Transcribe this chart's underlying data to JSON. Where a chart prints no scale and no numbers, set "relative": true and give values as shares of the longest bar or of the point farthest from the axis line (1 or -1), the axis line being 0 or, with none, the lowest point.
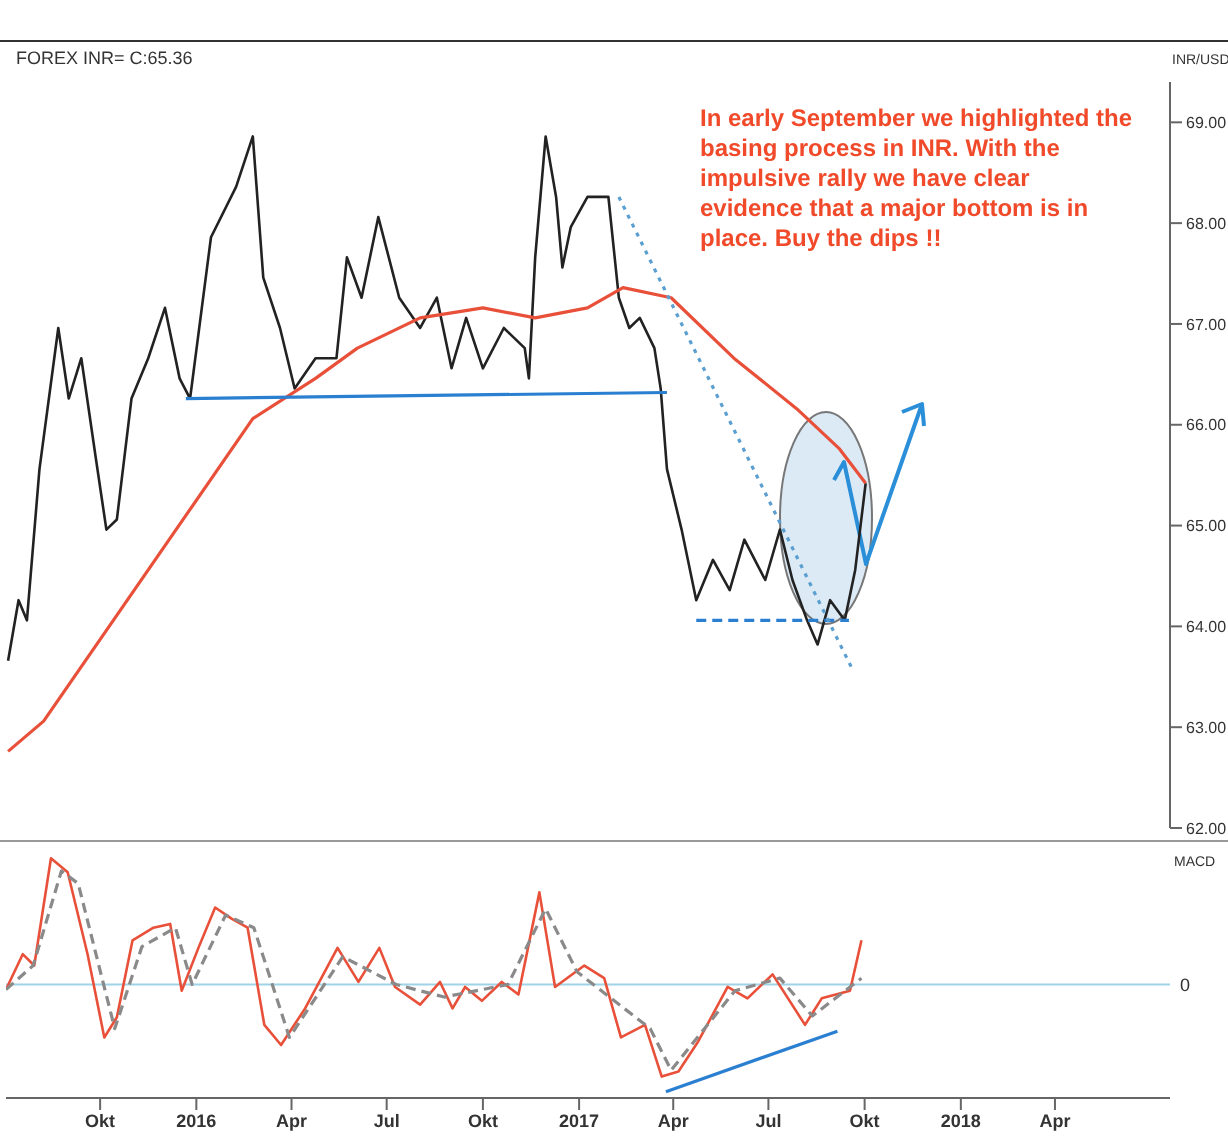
{
  "chart_data": [
    {
      "type": "line",
      "subtitle": "FOREX INR= C:65.36",
      "ylabel": "INR/USD",
      "annotations": [
        "In early September we highlighted the basing process in INR. With the impulsive rally we have clear evidence that a major bottom is in place. Buy the dips !!"
      ],
      "xlim": [
        "2015-07-03",
        "2018-07-20"
      ],
      "ylim": [
        62,
        69.4
      ],
      "yticks": [
        {
          "value": 62,
          "label": "62.00"
        },
        {
          "value": 63,
          "label": "63.00"
        },
        {
          "value": 64,
          "label": "64.00"
        },
        {
          "value": 65,
          "label": "65.00"
        },
        {
          "value": 66,
          "label": "66.00"
        },
        {
          "value": 67,
          "label": "67.00"
        },
        {
          "value": 68,
          "label": "68.00"
        },
        {
          "value": 69,
          "label": "69.00"
        }
      ],
      "tick_labels": "y",
      "series": [
        {
          "color": "#222222",
          "x": [
            "2015-07-05",
            "2015-07-15",
            "2015-07-23",
            "2015-08-04",
            "2015-08-22",
            "2015-09-01",
            "2015-09-13",
            "2015-09-27",
            "2015-10-07",
            "2015-10-17",
            "2015-10-31",
            "2015-11-16",
            "2015-12-02",
            "2015-12-16",
            "2015-12-26",
            "2016-01-15",
            "2016-02-08",
            "2016-02-24",
            "2016-03-05",
            "2016-03-21",
            "2016-04-04",
            "2016-04-24",
            "2016-05-14",
            "2016-05-24",
            "2016-06-07",
            "2016-06-23",
            "2016-07-03",
            "2016-07-13",
            "2016-08-02",
            "2016-08-18",
            "2016-09-01",
            "2016-09-15",
            "2016-10-01",
            "2016-10-21",
            "2016-11-10",
            "2016-11-14",
            "2016-11-20",
            "2016-11-30",
            "2016-12-10",
            "2016-12-16",
            "2016-12-24",
            "2017-01-09",
            "2017-01-29",
            "2017-02-08",
            "2017-02-18",
            "2017-02-28",
            "2017-03-14",
            "2017-03-20",
            "2017-03-26",
            "2017-04-09",
            "2017-04-23",
            "2017-05-09",
            "2017-05-25",
            "2017-06-08",
            "2017-06-28",
            "2017-07-12",
            "2017-07-24",
            "2017-08-07",
            "2017-08-17",
            "2017-08-29",
            "2017-09-12",
            "2017-09-22",
            "2017-10-02"
          ],
          "values": [
            63.66,
            64.26,
            64.06,
            65.56,
            66.96,
            66.26,
            66.66,
            65.66,
            64.96,
            65.06,
            66.26,
            66.66,
            67.16,
            66.46,
            66.26,
            67.86,
            68.36,
            68.86,
            67.46,
            66.96,
            66.36,
            66.66,
            66.66,
            67.66,
            67.26,
            68.06,
            67.66,
            67.26,
            66.96,
            67.26,
            66.56,
            67.06,
            66.56,
            66.96,
            66.76,
            66.46,
            67.66,
            68.86,
            68.26,
            67.56,
            67.96,
            68.26,
            68.26,
            67.26,
            66.96,
            67.06,
            66.76,
            66.36,
            65.56,
            64.96,
            64.26,
            64.66,
            64.36,
            64.86,
            64.46,
            64.96,
            64.46,
            64.06,
            63.82,
            64.26,
            64.06,
            64.56,
            65.42
          ]
        },
        {
          "color": "#e8503a",
          "x": [
            "2015-07-05",
            "2015-08-08",
            "2015-09-17",
            "2015-10-27",
            "2015-12-26",
            "2016-02-24",
            "2016-04-24",
            "2016-06-03",
            "2016-08-02",
            "2016-10-01",
            "2016-11-20",
            "2017-01-09",
            "2017-02-12",
            "2017-03-30",
            "2017-05-29",
            "2017-07-28",
            "2017-09-07",
            "2017-10-02"
          ],
          "values": [
            62.76,
            63.06,
            63.66,
            64.26,
            65.16,
            66.06,
            66.46,
            66.76,
            67.06,
            67.16,
            67.06,
            67.16,
            67.36,
            67.26,
            66.66,
            66.16,
            65.76,
            65.42
          ]
        },
        {
          "color": "#2a7fd0",
          "x": [
            "2015-12-22",
            "2017-03-26"
          ],
          "values": [
            66.26,
            66.32
          ]
        },
        {
          "color": "#2a7fd0",
          "line_style": "dashed",
          "x": [
            "2017-04-23",
            "2017-09-16"
          ],
          "values": [
            64.06,
            64.06
          ]
        },
        {
          "color": "#5a9fd0",
          "line_style": "dotted",
          "x": [
            "2017-02-08",
            "2017-09-20"
          ],
          "values": [
            68.26,
            63.56
          ]
        }
      ]
    },
    {
      "type": "line",
      "ylabel": "MACD",
      "relative": true,
      "xlim": [
        "2015-07-03",
        "2018-07-20"
      ],
      "xticks": [
        {
          "value": "2015-10-01",
          "label": "Okt"
        },
        {
          "value": "2016-01-01",
          "label": "2016"
        },
        {
          "value": "2016-04-01",
          "label": "Apr"
        },
        {
          "value": "2016-07-01",
          "label": "Jul"
        },
        {
          "value": "2016-10-01",
          "label": "Okt"
        },
        {
          "value": "2017-01-01",
          "label": "2017"
        },
        {
          "value": "2017-04-01",
          "label": "Apr"
        },
        {
          "value": "2017-07-01",
          "label": "Jul"
        },
        {
          "value": "2017-10-01",
          "label": "Okt"
        },
        {
          "value": "2018-01-01",
          "label": "2018"
        },
        {
          "value": "2018-04-01",
          "label": "Apr"
        }
      ],
      "tick_labels": "x",
      "ref_lines": [
        {
          "axis": "y",
          "value": 0,
          "label": "0",
          "color": "#9fd4e8"
        }
      ],
      "series": [
        {
          "color": "#e8503a",
          "x": [
            "2015-07-03",
            "2015-07-19",
            "2015-07-30",
            "2015-08-15",
            "2015-08-31",
            "2015-09-19",
            "2015-10-05",
            "2015-10-17",
            "2015-11-01",
            "2015-11-21",
            "2015-12-07",
            "2015-12-18",
            "2016-01-03",
            "2016-01-19",
            "2016-02-04",
            "2016-02-19",
            "2016-03-06",
            "2016-03-22",
            "2016-04-14",
            "2016-05-15",
            "2016-06-04",
            "2016-06-24",
            "2016-07-09",
            "2016-08-02",
            "2016-08-21",
            "2016-09-02",
            "2016-09-14",
            "2016-09-30",
            "2016-10-19",
            "2016-11-04",
            "2016-11-24",
            "2016-12-09",
            "2017-01-06",
            "2017-01-25",
            "2017-02-10",
            "2017-03-05",
            "2017-03-21",
            "2017-04-06",
            "2017-04-25",
            "2017-05-23",
            "2017-06-11",
            "2017-07-05",
            "2017-08-05",
            "2017-08-21",
            "2017-09-17",
            "2017-09-28"
          ],
          "values": [
            -0.04,
            0.24,
            0.15,
            1,
            0.89,
            0.24,
            -0.42,
            -0.26,
            0.35,
            0.45,
            0.48,
            -0.05,
            0.29,
            0.61,
            0.52,
            0.45,
            -0.32,
            -0.48,
            -0.19,
            0.29,
            0.02,
            0.29,
            -0.02,
            -0.16,
            0.02,
            -0.19,
            -0.02,
            -0.13,
            0.02,
            -0.08,
            0.73,
            -0.02,
            0.15,
            0.05,
            -0.42,
            -0.32,
            -0.73,
            -0.69,
            -0.45,
            -0.02,
            -0.11,
            0.08,
            -0.32,
            -0.11,
            -0.05,
            0.35
          ]
        },
        {
          "color": "#8a8a8a",
          "line_style": "dashed",
          "x": [
            "2015-07-03",
            "2015-07-29",
            "2015-08-25",
            "2015-09-10",
            "2015-10-15",
            "2015-11-10",
            "2015-12-12",
            "2015-12-28",
            "2016-01-29",
            "2016-02-25",
            "2016-03-30",
            "2016-05-20",
            "2016-07-10",
            "2016-08-25",
            "2016-10-25",
            "2016-11-30",
            "2016-12-30",
            "2017-03-10",
            "2017-03-30",
            "2017-05-30",
            "2017-07-12",
            "2017-08-12",
            "2017-09-28"
          ],
          "values": [
            -0.04,
            0.15,
            0.9,
            0.8,
            -0.35,
            0.3,
            0.45,
            0.0,
            0.55,
            0.45,
            -0.42,
            0.22,
            0.0,
            -0.1,
            0.0,
            0.6,
            0.1,
            -0.35,
            -0.68,
            -0.05,
            0.05,
            -0.25,
            0.05
          ]
        },
        {
          "color": "#2a7fd0",
          "x": [
            "2017-03-25",
            "2017-09-05"
          ],
          "values": [
            -0.85,
            -0.37
          ]
        }
      ]
    }
  ]
}
